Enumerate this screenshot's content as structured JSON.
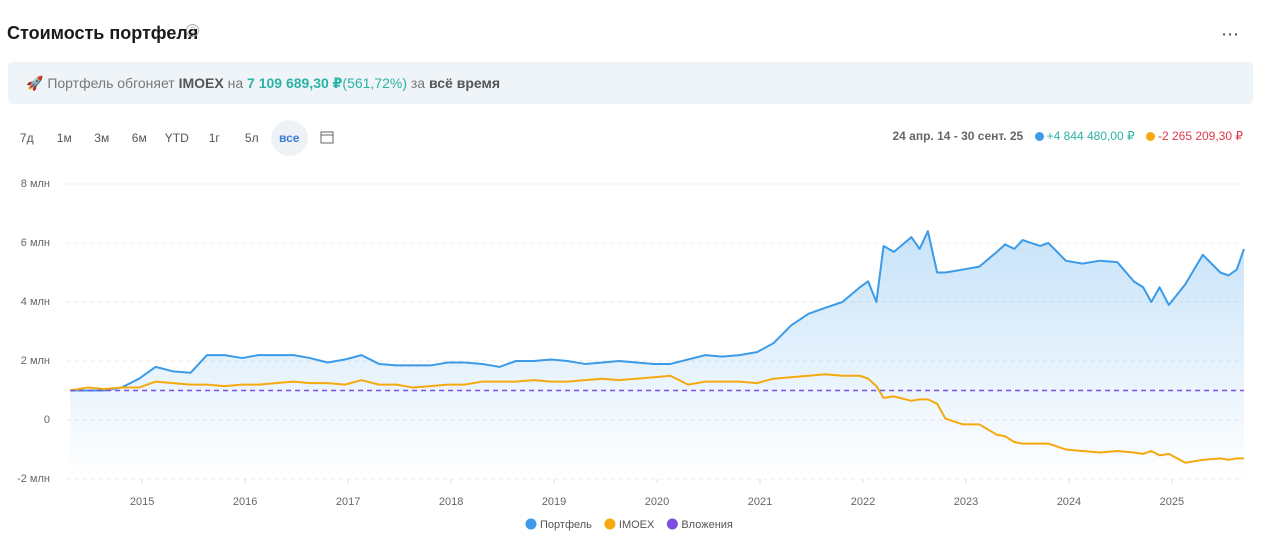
{
  "header": {
    "title": "Стоимость портфеля"
  },
  "banner": {
    "text_1": "Портфель обгоняет",
    "index": "IMOEX",
    "text_2": "на",
    "amount": "7 109 689,30 ₽",
    "percent": "(561,72%)",
    "text_3": "за",
    "period": "всё время"
  },
  "periods": [
    "7д",
    "1м",
    "3м",
    "6м",
    "YTD",
    "1г",
    "5л",
    "все"
  ],
  "summary": {
    "range": "24 апр. 14 - 30 сент. 25",
    "portfolio_change": "+4 844 480,00 ₽",
    "index_change": "-2 265 209,30 ₽"
  },
  "chart_data": {
    "type": "line",
    "x": [
      2014.3,
      2014.47,
      2014.63,
      2014.8,
      2014.97,
      2015.13,
      2015.3,
      2015.47,
      2015.63,
      2015.8,
      2015.97,
      2016.13,
      2016.3,
      2016.47,
      2016.63,
      2016.8,
      2016.97,
      2017.13,
      2017.3,
      2017.47,
      2017.63,
      2017.8,
      2017.97,
      2018.13,
      2018.3,
      2018.47,
      2018.63,
      2018.8,
      2018.97,
      2019.13,
      2019.3,
      2019.47,
      2019.63,
      2019.8,
      2019.97,
      2020.13,
      2020.3,
      2020.47,
      2020.63,
      2020.8,
      2020.97,
      2021.13,
      2021.3,
      2021.47,
      2021.63,
      2021.8,
      2021.97,
      2022.05,
      2022.13,
      2022.2,
      2022.3,
      2022.47,
      2022.55,
      2022.63,
      2022.72,
      2022.8,
      2022.97,
      2023.13,
      2023.3,
      2023.38,
      2023.47,
      2023.55,
      2023.72,
      2023.8,
      2023.97,
      2024.13,
      2024.3,
      2024.47,
      2024.63,
      2024.72,
      2024.8,
      2024.88,
      2024.97,
      2025.13,
      2025.3,
      2025.47,
      2025.55,
      2025.63,
      2025.7
    ],
    "series": [
      {
        "name": "Портфель",
        "color": "#3b9be8",
        "values": [
          1.0,
          1.0,
          1.0,
          1.1,
          1.4,
          1.8,
          1.65,
          1.6,
          2.2,
          2.2,
          2.1,
          2.2,
          2.2,
          2.2,
          2.1,
          1.95,
          2.05,
          2.2,
          1.9,
          1.85,
          1.85,
          1.85,
          1.95,
          1.95,
          1.9,
          1.8,
          2.0,
          2.0,
          2.05,
          2.0,
          1.9,
          1.95,
          2.0,
          1.95,
          1.9,
          1.9,
          2.05,
          2.2,
          2.15,
          2.2,
          2.3,
          2.6,
          3.2,
          3.6,
          3.8,
          4.0,
          4.5,
          4.7,
          4.0,
          5.9,
          5.7,
          6.2,
          5.8,
          6.4,
          5.0,
          5.0,
          5.1,
          5.2,
          5.7,
          5.95,
          5.8,
          6.1,
          5.9,
          6.0,
          5.4,
          5.3,
          5.4,
          5.35,
          4.7,
          4.5,
          4.0,
          4.5,
          3.9,
          4.6,
          5.6,
          5.0,
          4.9,
          5.1,
          5.8
        ]
      },
      {
        "name": "IMOEX",
        "color": "#f5a90f",
        "values": [
          1.0,
          1.1,
          1.05,
          1.1,
          1.1,
          1.3,
          1.25,
          1.2,
          1.2,
          1.15,
          1.2,
          1.2,
          1.25,
          1.3,
          1.25,
          1.25,
          1.2,
          1.35,
          1.2,
          1.2,
          1.1,
          1.15,
          1.2,
          1.2,
          1.3,
          1.3,
          1.3,
          1.35,
          1.3,
          1.3,
          1.35,
          1.4,
          1.35,
          1.4,
          1.45,
          1.5,
          1.2,
          1.3,
          1.3,
          1.3,
          1.25,
          1.4,
          1.45,
          1.5,
          1.55,
          1.5,
          1.5,
          1.4,
          1.15,
          0.75,
          0.8,
          0.65,
          0.7,
          0.7,
          0.55,
          0.05,
          -0.15,
          -0.15,
          -0.5,
          -0.55,
          -0.75,
          -0.8,
          -0.8,
          -0.8,
          -1.0,
          -1.05,
          -1.1,
          -1.05,
          -1.1,
          -1.15,
          -1.05,
          -1.2,
          -1.15,
          -1.45,
          -1.35,
          -1.3,
          -1.35,
          -1.3,
          -1.3
        ]
      },
      {
        "name": "Вложения",
        "color": "#7b4fe0",
        "dashed": true,
        "values": [
          1,
          1,
          1,
          1,
          1,
          1,
          1,
          1,
          1,
          1,
          1,
          1,
          1,
          1,
          1,
          1,
          1,
          1,
          1,
          1,
          1,
          1,
          1,
          1,
          1,
          1,
          1,
          1,
          1,
          1,
          1,
          1,
          1,
          1,
          1,
          1,
          1,
          1,
          1,
          1,
          1,
          1,
          1,
          1,
          1,
          1,
          1,
          1,
          1,
          1,
          1,
          1,
          1,
          1,
          1,
          1,
          1,
          1,
          1,
          1,
          1,
          1,
          1,
          1,
          1,
          1,
          1,
          1,
          1,
          1,
          1,
          1,
          1,
          1,
          1,
          1,
          1,
          1,
          1
        ]
      }
    ],
    "xlim": [
      2014.27,
      2025.7
    ],
    "xticks": [
      2015,
      2016,
      2017,
      2018,
      2019,
      2020,
      2021,
      2022,
      2023,
      2024,
      2025
    ],
    "ylim": [
      -2,
      8
    ],
    "yticks": [
      {
        "value": -2,
        "label": "-2 млн"
      },
      0,
      {
        "value": 2,
        "label": "2 млн"
      },
      {
        "value": 4,
        "label": "4 млн"
      },
      {
        "value": 6,
        "label": "6 млн"
      },
      {
        "value": 8,
        "label": "8 млн"
      }
    ],
    "grid": true
  }
}
